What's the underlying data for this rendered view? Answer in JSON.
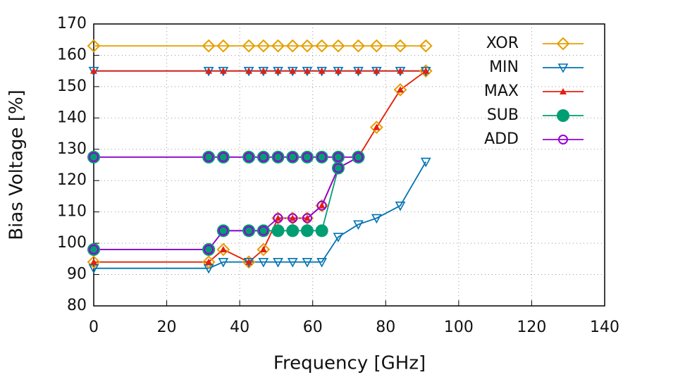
{
  "chart_data": {
    "type": "line",
    "xlabel": "Frequency [GHz]",
    "ylabel": "Bias Voltage [%]",
    "x": [
      0,
      31.5,
      35.5,
      42.5,
      46.5,
      50.5,
      54.5,
      58.5,
      62.5,
      67,
      72.5,
      77.5,
      84,
      91
    ],
    "xlim": [
      0,
      140
    ],
    "xticks": [
      0,
      20,
      40,
      60,
      80,
      100,
      120,
      140
    ],
    "ylim": [
      80,
      170
    ],
    "yticks": [
      80,
      90,
      100,
      110,
      120,
      130,
      140,
      150,
      160,
      170
    ],
    "grid": true,
    "legend": "top-right",
    "series": [
      {
        "name": "XOR",
        "color": "#e69f00",
        "marker": "diamond-open",
        "values": [
          163,
          163,
          163,
          163,
          163,
          163,
          163,
          163,
          163,
          163,
          163,
          163,
          163,
          163
        ]
      },
      {
        "color": "#e69f00",
        "marker": "diamond-open",
        "values": [
          94,
          94,
          98,
          94,
          98,
          108,
          108,
          108,
          112,
          124,
          127.5,
          137,
          149,
          155
        ]
      },
      {
        "name": "MIN",
        "color": "#0072b2",
        "marker": "triangle-down-open",
        "values": [
          155,
          155,
          155,
          155,
          155,
          155,
          155,
          155,
          155,
          155,
          155,
          155,
          155,
          155
        ]
      },
      {
        "color": "#0072b2",
        "marker": "triangle-down-open",
        "values": [
          92,
          92,
          94,
          94,
          94,
          94,
          94,
          94,
          94,
          102,
          106,
          108,
          112,
          126
        ]
      },
      {
        "name": "MAX",
        "color": "#e51e10",
        "marker": "triangle-filled",
        "values": [
          155,
          155,
          155,
          155,
          155,
          155,
          155,
          155,
          155,
          155,
          155,
          155,
          155,
          155
        ]
      },
      {
        "color": "#e51e10",
        "marker": "triangle-filled",
        "values": [
          94,
          94,
          98,
          94,
          98,
          108,
          108,
          108,
          112,
          124,
          127.5,
          137,
          149,
          155
        ]
      },
      {
        "name": "SUB",
        "color": "#009e73",
        "marker": "circle-filled",
        "values": [
          127.5,
          127.5,
          127.5,
          127.5,
          127.5,
          127.5,
          127.5,
          127.5,
          127.5,
          127.5,
          127.5,
          null,
          null,
          null
        ]
      },
      {
        "color": "#009e73",
        "marker": "circle-filled",
        "values": [
          98,
          98,
          104,
          104,
          104,
          104,
          104,
          104,
          104,
          124,
          127.5,
          null,
          null,
          null
        ]
      },
      {
        "name": "ADD",
        "color": "#9400d3",
        "marker": "circle-open",
        "values": [
          127.5,
          127.5,
          127.5,
          127.5,
          127.5,
          127.5,
          127.5,
          127.5,
          127.5,
          127.5,
          127.5,
          null,
          null,
          null
        ]
      },
      {
        "color": "#9400d3",
        "marker": "circle-open",
        "values": [
          98,
          98,
          104,
          104,
          104,
          108,
          108,
          108,
          112,
          124,
          127.5,
          null,
          null,
          null
        ]
      }
    ]
  }
}
